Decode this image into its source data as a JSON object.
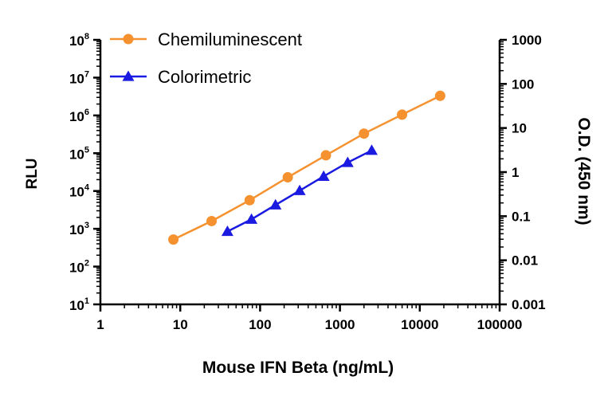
{
  "chart_data": {
    "type": "line",
    "xlabel": "Mouse IFN Beta (ng/mL)",
    "ylabel": "RLU",
    "y2label": "O.D. (450 nm)",
    "x_scale": "log",
    "y_scale": "log",
    "y2_scale": "log",
    "xlim": [
      1,
      100000
    ],
    "ylim": [
      10,
      100000000
    ],
    "y2lim": [
      0.001,
      1000
    ],
    "x_ticks": [
      "1",
      "10",
      "100",
      "1000",
      "10000",
      "100000"
    ],
    "y_ticks": [
      {
        "base": "10",
        "exp": "1"
      },
      {
        "base": "10",
        "exp": "2"
      },
      {
        "base": "10",
        "exp": "3"
      },
      {
        "base": "10",
        "exp": "4"
      },
      {
        "base": "10",
        "exp": "5"
      },
      {
        "base": "10",
        "exp": "6"
      },
      {
        "base": "10",
        "exp": "7"
      },
      {
        "base": "10",
        "exp": "8"
      }
    ],
    "y2_ticks": [
      "0.001",
      "0.01",
      "0.1",
      "1",
      "10",
      "100",
      "1000"
    ],
    "legend_position": "top-left",
    "grid": false,
    "series": [
      {
        "name": "Chemiluminescent",
        "axis": "left",
        "marker": "circle",
        "color": "#F5922F",
        "x": [
          8.2,
          24.7,
          74,
          222,
          667,
          2000,
          6000,
          18000
        ],
        "y": [
          520,
          1600,
          5700,
          23000,
          88000,
          330000,
          1050000,
          3300000
        ]
      },
      {
        "name": "Colorimetric",
        "axis": "right",
        "marker": "triangle",
        "color": "#1A1AE0",
        "x": [
          39,
          78,
          156,
          313,
          625,
          1250,
          2500
        ],
        "y": [
          0.045,
          0.085,
          0.18,
          0.38,
          0.8,
          1.65,
          3.1
        ]
      }
    ]
  }
}
